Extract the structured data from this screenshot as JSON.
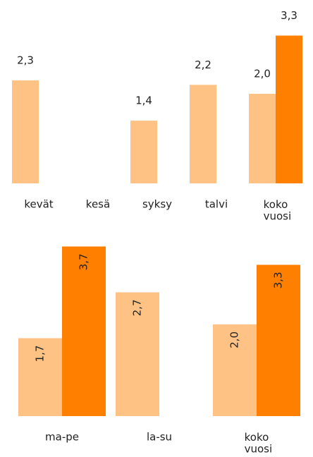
{
  "chart_data": [
    {
      "type": "bar",
      "categories": [
        "kevät",
        "kesä",
        "syksy",
        "talvi",
        "koko vuosi"
      ],
      "series": [
        {
          "color": "#ffc285",
          "values": [
            2.3,
            null,
            1.4,
            2.2,
            2.0
          ],
          "value_labels": [
            "2,3",
            null,
            "1,4",
            "2,2",
            "2,0"
          ]
        },
        {
          "color": "#ff8000",
          "values": [
            null,
            null,
            null,
            null,
            3.3
          ],
          "value_labels": [
            null,
            null,
            null,
            null,
            "3,3"
          ]
        }
      ],
      "ylim": [
        0,
        4
      ]
    },
    {
      "type": "bar",
      "categories": [
        "ma-pe",
        "la-su",
        "koko vuosi"
      ],
      "series": [
        {
          "color": "#ffc285",
          "values": [
            1.7,
            2.7,
            2.0
          ],
          "value_labels": [
            "1,7",
            "2,7",
            "2,0"
          ]
        },
        {
          "color": "#ff8000",
          "values": [
            3.7,
            null,
            3.3
          ],
          "value_labels": [
            "3,7",
            null,
            "3,3"
          ]
        }
      ],
      "ylim": [
        0,
        4
      ],
      "label_rotation": -90
    }
  ]
}
